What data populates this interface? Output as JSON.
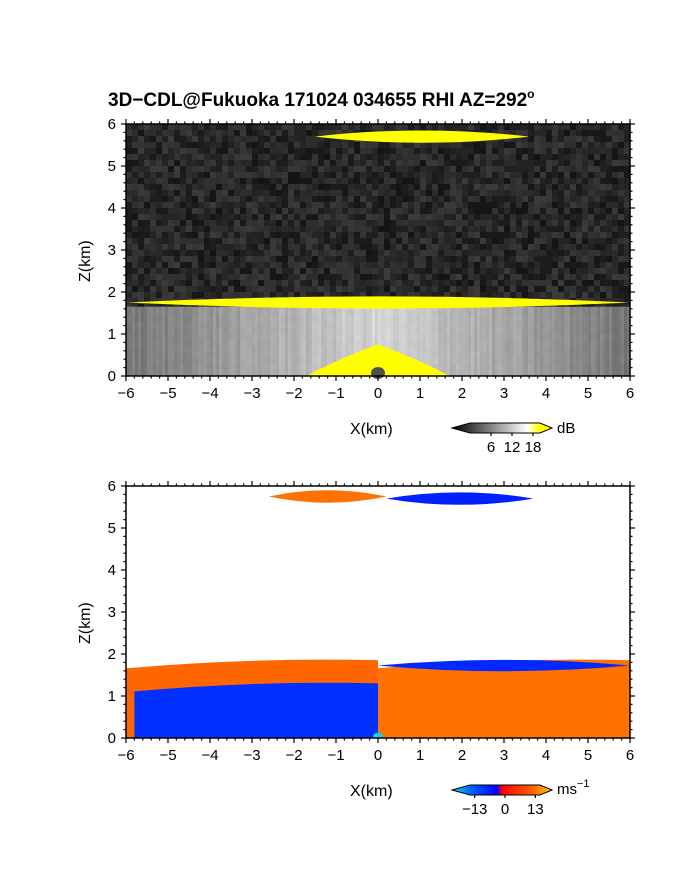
{
  "chart_data": [
    {
      "type": "heatmap",
      "title": "3D−CDL@Fukuoka 171024 034655 RHI AZ=292",
      "title_superscript": "o",
      "xlabel": "X(km)",
      "ylabel": "Z(km)",
      "xlim": [
        -6,
        6
      ],
      "ylim": [
        0,
        6
      ],
      "xticks": [
        -6,
        -5,
        -4,
        -3,
        -2,
        -1,
        0,
        1,
        2,
        3,
        4,
        5,
        6
      ],
      "yticks": [
        0,
        1,
        2,
        3,
        4,
        5,
        6
      ],
      "xtick_labels": [
        "−6",
        "−5",
        "−4",
        "−3",
        "−2",
        "−1",
        "0",
        "1",
        "2",
        "3",
        "4",
        "5",
        "6"
      ],
      "ytick_labels": [
        "0",
        "1",
        "2",
        "3",
        "4",
        "5",
        "6"
      ],
      "colorbar": {
        "unit": "dB",
        "ticks": [
          6,
          12,
          18
        ],
        "tick_labels": [
          "6",
          "12",
          "18"
        ],
        "range": [
          0,
          20
        ],
        "colors": [
          "#000000",
          "#ffffff",
          "#ffff00"
        ]
      },
      "features": [
        {
          "kind": "layer",
          "z_bottom": 1.6,
          "z_top": 1.9,
          "x_from": -6,
          "x_to": 6,
          "value": 20
        },
        {
          "kind": "layer",
          "z_bottom": 5.55,
          "z_top": 5.85,
          "x_from": -1.5,
          "x_to": 3.6,
          "value": 20
        },
        {
          "kind": "dome",
          "x_center": 0,
          "half_width": 1.7,
          "height": 0.75,
          "value": 20
        }
      ]
    },
    {
      "type": "heatmap",
      "xlabel": "X(km)",
      "ylabel": "Z(km)",
      "xlim": [
        -6,
        6
      ],
      "ylim": [
        0,
        6
      ],
      "xticks": [
        -6,
        -5,
        -4,
        -3,
        -2,
        -1,
        0,
        1,
        2,
        3,
        4,
        5,
        6
      ],
      "yticks": [
        0,
        1,
        2,
        3,
        4,
        5,
        6
      ],
      "xtick_labels": [
        "−6",
        "−5",
        "−4",
        "−3",
        "−2",
        "−1",
        "0",
        "1",
        "2",
        "3",
        "4",
        "5",
        "6"
      ],
      "ytick_labels": [
        "0",
        "1",
        "2",
        "3",
        "4",
        "5",
        "6"
      ],
      "colorbar": {
        "unit": "ms",
        "unit_superscript": "−1",
        "ticks": [
          -13,
          0,
          13
        ],
        "tick_labels": [
          "−13",
          "0",
          "13"
        ],
        "range": [
          -15,
          15
        ],
        "colors": [
          "#00e0e0",
          "#0000ff",
          "#ff0000",
          "#ffd000"
        ]
      },
      "features": [
        {
          "kind": "layer",
          "x_from": -6,
          "x_to": 0,
          "z_bottom": 0,
          "z_top": 1.85,
          "value": 9,
          "note": "outer"
        },
        {
          "kind": "layer",
          "x_from": -5.8,
          "x_to": 0,
          "z_bottom": 0,
          "z_top": 1.3,
          "value": -9
        },
        {
          "kind": "layer",
          "x_from": 0,
          "x_to": 6,
          "z_bottom": 0,
          "z_top": 1.85,
          "value": 10
        },
        {
          "kind": "layer",
          "x_from": 0,
          "x_to": 6,
          "z_bottom": 1.55,
          "z_top": 1.9,
          "value": -10
        },
        {
          "kind": "layer",
          "x_from": -2.6,
          "x_to": 0.2,
          "z_bottom": 5.55,
          "z_top": 5.95,
          "value": 10
        },
        {
          "kind": "layer",
          "x_from": 0.2,
          "x_to": 3.7,
          "z_bottom": 5.5,
          "z_top": 5.9,
          "value": -11
        }
      ]
    }
  ]
}
